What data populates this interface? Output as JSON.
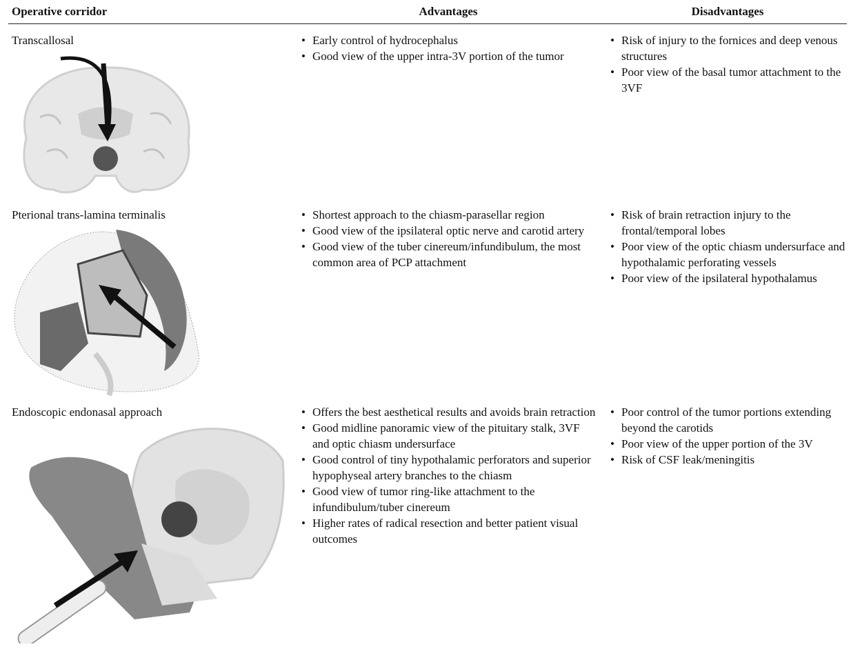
{
  "table": {
    "headers": [
      "Operative corridor",
      "Advantages",
      "Disadvantages"
    ],
    "rows": [
      {
        "corridor": "Transcallosal",
        "advantages": [
          "Early control of hydrocephalus",
          "Good view of the upper intra-3V portion of the tumor"
        ],
        "disadvantages": [
          "Risk of injury to the fornices and deep venous structures",
          "Poor view of the basal tumor attachment to the 3VF"
        ]
      },
      {
        "corridor": "Pterional trans-lamina terminalis",
        "advantages": [
          "Shortest approach to the chiasm-parasellar region",
          "Good view of the ipsilateral optic nerve and carotid artery",
          "Good view of the tuber cinereum/infundibulum, the most common area of PCP attachment"
        ],
        "disadvantages": [
          "Risk of brain retraction injury to the frontal/temporal lobes",
          "Poor view of the optic chiasm undersurface and hypothalamic perforating vessels",
          "Poor view of the ipsilateral hypothalamus"
        ]
      },
      {
        "corridor": "Endoscopic endonasal approach",
        "advantages": [
          "Offers the best aesthetical results and avoids brain retraction",
          "Good midline panoramic view of the pituitary stalk, 3VF and optic chiasm undersurface",
          "Good control of tiny hypothalamic perforators and superior hypophyseal artery branches to the chiasm",
          "Good view of tumor ring-like attachment to the infundibulum/tuber cinereum",
          "Higher rates of radical resection and better patient visual outcomes"
        ],
        "disadvantages": [
          "Poor control of the tumor portions extending beyond the carotids",
          "Poor view of the upper portion of the 3V",
          "Risk of CSF leak/meningitis"
        ]
      }
    ]
  }
}
